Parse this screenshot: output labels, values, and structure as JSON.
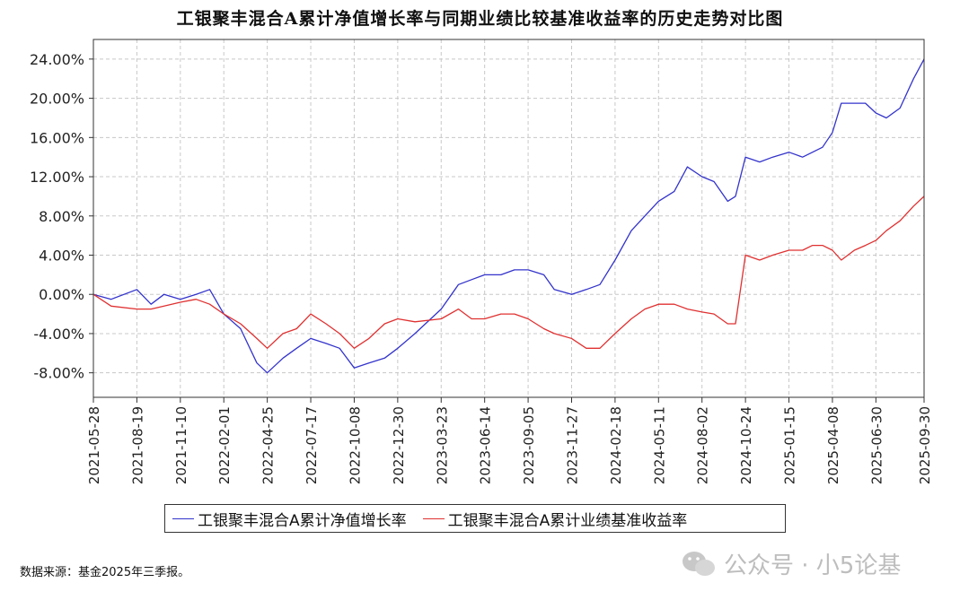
{
  "chart_data": {
    "type": "line",
    "title": "工银聚丰混合A累计净值增长率与同期业绩比较基准收益率的历史走势对比图",
    "xlabel": "",
    "ylabel": "",
    "x_ticks": [
      "2021-05-28",
      "2021-08-19",
      "2021-11-10",
      "2022-02-01",
      "2022-04-25",
      "2022-07-17",
      "2022-10-08",
      "2022-12-30",
      "2023-03-23",
      "2023-06-14",
      "2023-09-05",
      "2023-11-27",
      "2024-02-18",
      "2024-05-11",
      "2024-08-02",
      "2024-10-24",
      "2025-01-15",
      "2025-04-08",
      "2025-06-30",
      "2025-09-30"
    ],
    "y_ticks": [
      "24.00%",
      "20.00%",
      "16.00%",
      "12.00%",
      "8.00%",
      "4.00%",
      "0.00%",
      "-4.00%",
      "-8.00%"
    ],
    "ylim": [
      -10.5,
      26
    ],
    "grid": true,
    "legend_placement": "bottom",
    "x": [
      "2021-05-28",
      "2021-07-01",
      "2021-08-19",
      "2021-09-15",
      "2021-10-10",
      "2021-11-10",
      "2021-12-10",
      "2022-01-05",
      "2022-02-01",
      "2022-03-05",
      "2022-04-05",
      "2022-04-25",
      "2022-05-25",
      "2022-06-20",
      "2022-07-17",
      "2022-08-15",
      "2022-09-10",
      "2022-10-08",
      "2022-11-05",
      "2022-12-05",
      "2022-12-30",
      "2023-02-01",
      "2023-03-23",
      "2023-04-25",
      "2023-05-20",
      "2023-06-14",
      "2023-07-15",
      "2023-08-10",
      "2023-09-05",
      "2023-10-05",
      "2023-10-25",
      "2023-11-27",
      "2023-12-25",
      "2024-01-20",
      "2024-02-18",
      "2024-03-20",
      "2024-04-15",
      "2024-05-11",
      "2024-06-10",
      "2024-07-05",
      "2024-08-02",
      "2024-08-25",
      "2024-09-20",
      "2024-10-05",
      "2024-10-24",
      "2024-11-20",
      "2024-12-15",
      "2025-01-15",
      "2025-02-10",
      "2025-03-01",
      "2025-03-20",
      "2025-04-08",
      "2025-04-25",
      "2025-05-20",
      "2025-06-10",
      "2025-06-30",
      "2025-07-20",
      "2025-08-15",
      "2025-09-10",
      "2025-09-30"
    ],
    "series": [
      {
        "name": "工银聚丰混合A累计净值增长率",
        "color": "#3333cc",
        "values": [
          0.0,
          -0.5,
          0.5,
          -1.0,
          0.0,
          -0.5,
          0.0,
          0.5,
          -2.0,
          -3.5,
          -7.0,
          -8.0,
          -6.5,
          -5.5,
          -4.5,
          -5.0,
          -5.5,
          -7.5,
          -7.0,
          -6.5,
          -5.5,
          -4.0,
          -1.5,
          1.0,
          1.5,
          2.0,
          2.0,
          2.5,
          2.5,
          2.0,
          0.5,
          0.0,
          0.5,
          1.0,
          3.5,
          6.5,
          8.0,
          9.5,
          10.5,
          13.0,
          12.0,
          11.5,
          9.5,
          10.0,
          14.0,
          13.5,
          14.0,
          14.5,
          14.0,
          14.5,
          15.0,
          16.5,
          19.5,
          19.5,
          19.5,
          18.5,
          18.0,
          19.0,
          22.0,
          24.0
        ]
      },
      {
        "name": "工银聚丰混合A累计业绩基准收益率",
        "color": "#e03030",
        "values": [
          0.0,
          -1.2,
          -1.5,
          -1.5,
          -1.2,
          -0.8,
          -0.5,
          -1.0,
          -2.0,
          -3.0,
          -4.5,
          -5.5,
          -4.0,
          -3.5,
          -2.0,
          -3.0,
          -4.0,
          -5.5,
          -4.5,
          -3.0,
          -2.5,
          -2.8,
          -2.5,
          -1.5,
          -2.5,
          -2.5,
          -2.0,
          -2.0,
          -2.5,
          -3.5,
          -4.0,
          -4.5,
          -5.5,
          -5.5,
          -4.0,
          -2.5,
          -1.5,
          -1.0,
          -1.0,
          -1.5,
          -1.8,
          -2.0,
          -3.0,
          -3.0,
          4.0,
          3.5,
          4.0,
          4.5,
          4.5,
          5.0,
          5.0,
          4.5,
          3.5,
          4.5,
          5.0,
          5.5,
          6.5,
          7.5,
          9.0,
          10.0
        ]
      }
    ]
  },
  "legend": {
    "items": [
      {
        "label": "工银聚丰混合A累计净值增长率",
        "color": "#3333cc"
      },
      {
        "label": "工银聚丰混合A累计业绩基准收益率",
        "color": "#e03030"
      }
    ]
  },
  "footer": {
    "source_note": "数据来源：基金2025年三季报。",
    "watermark": "公众号 · 小5论基"
  }
}
